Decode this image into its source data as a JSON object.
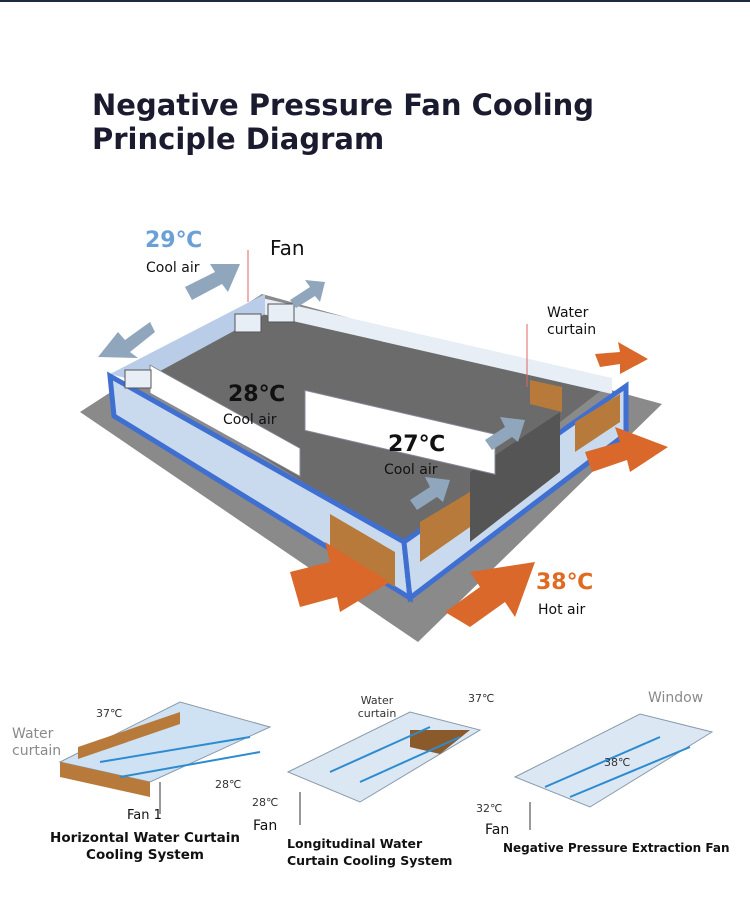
{
  "title": "Negative Pressure Fan Cooling Principle Diagram",
  "main": {
    "fan_label": "Fan",
    "water_curtain_label": "Water curtain",
    "zones": [
      {
        "temp": "29℃",
        "air": "Cool air"
      },
      {
        "temp": "28℃",
        "air": "Cool air"
      },
      {
        "temp": "27℃",
        "air": "Cool air"
      },
      {
        "temp": "38℃",
        "air": "Hot air"
      }
    ]
  },
  "systems": [
    {
      "caption": "Horizontal Water Curtain Cooling System",
      "curtain": "Water curtain",
      "hot": "37℃",
      "cool": "28℃",
      "fan": "Fan 1"
    },
    {
      "caption": "Longitudinal Water Curtain Cooling System",
      "curtain": "Water curtain",
      "hot": "37℃",
      "cool": "28℃",
      "fan": "Fan"
    },
    {
      "caption": "Negative Pressure Extraction Fan",
      "window": "Window",
      "hot": "38℃",
      "cool": "32℃",
      "fan": "Fan"
    }
  ]
}
